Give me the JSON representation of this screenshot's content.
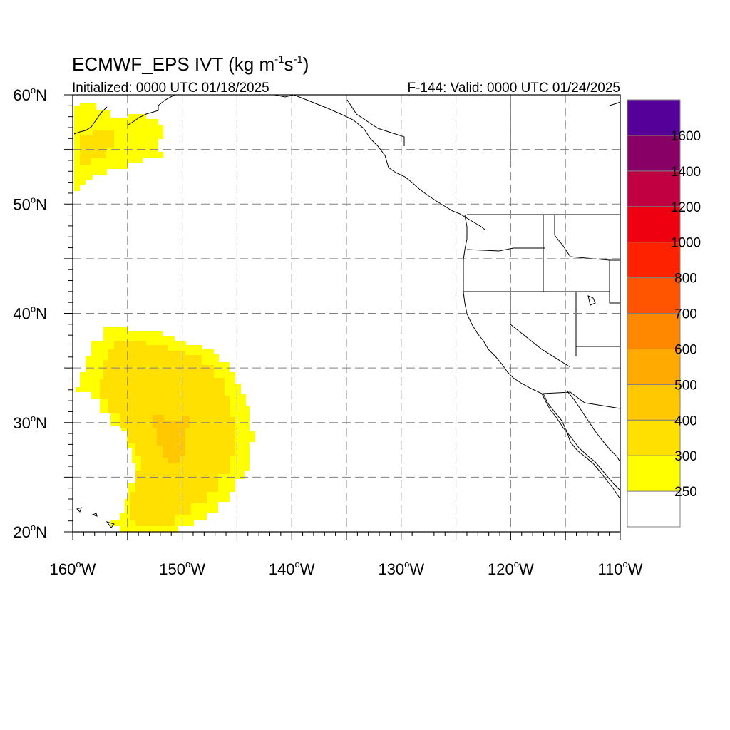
{
  "title": {
    "main": "ECMWF_EPS IVT (kg m",
    "unit_sup1": "-1",
    "unit_mid": "s",
    "unit_sup2": "-1",
    "unit_close": ")"
  },
  "subtitle_left": "Initialized: 0000 UTC 01/18/2025",
  "subtitle_right": "F-144: Valid: 0000 UTC 01/24/2025",
  "lat_labels": [
    {
      "deg": "60",
      "suffix": "N",
      "lat": 60
    },
    {
      "deg": "50",
      "suffix": "N",
      "lat": 50
    },
    {
      "deg": "40",
      "suffix": "N",
      "lat": 40
    },
    {
      "deg": "30",
      "suffix": "N",
      "lat": 30
    },
    {
      "deg": "20",
      "suffix": "N",
      "lat": 20
    }
  ],
  "lon_labels": [
    {
      "deg": "160",
      "suffix": "W",
      "lon": -160
    },
    {
      "deg": "150",
      "suffix": "W",
      "lon": -150
    },
    {
      "deg": "140",
      "suffix": "W",
      "lon": -140
    },
    {
      "deg": "130",
      "suffix": "W",
      "lon": -130
    },
    {
      "deg": "120",
      "suffix": "W",
      "lon": -120
    },
    {
      "deg": "110",
      "suffix": "W",
      "lon": -110
    }
  ],
  "colorbar": {
    "labels": [
      "250",
      "300",
      "400",
      "500",
      "600",
      "700",
      "800",
      "1000",
      "1200",
      "1400",
      "1600"
    ],
    "colors": [
      "#ffffff",
      "#ffff00",
      "#ffe000",
      "#ffc800",
      "#ffaa00",
      "#ff8800",
      "#ff5500",
      "#ff2200",
      "#ee0011",
      "#c00040",
      "#880066",
      "#550099"
    ]
  },
  "map_extent": {
    "lon_min": -160,
    "lon_max": -110,
    "lat_min": 20,
    "lat_max": 60
  }
}
